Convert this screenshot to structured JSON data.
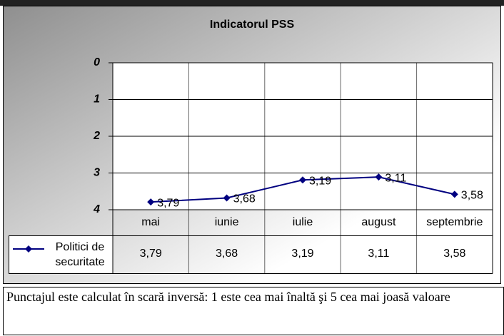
{
  "chart_data": {
    "type": "line",
    "title": "Indicatorul PSS",
    "categories": [
      "mai",
      "iunie",
      "iulie",
      "august",
      "septembrie"
    ],
    "series": [
      {
        "name": "Politici de securitate",
        "color": "#000080",
        "values": [
          3.79,
          3.68,
          3.19,
          3.11,
          3.58
        ],
        "value_labels": [
          "3,79",
          "3,68",
          "3,19",
          "3,11",
          "3,58"
        ]
      }
    ],
    "ylim": [
      4,
      0
    ],
    "yticks": [
      0,
      1,
      2,
      3,
      4
    ],
    "grid": true
  },
  "footer_note": "Punctajul este calculat în scară inversă: 1 este cea mai înaltă şi 5 cea mai joasă valoare"
}
